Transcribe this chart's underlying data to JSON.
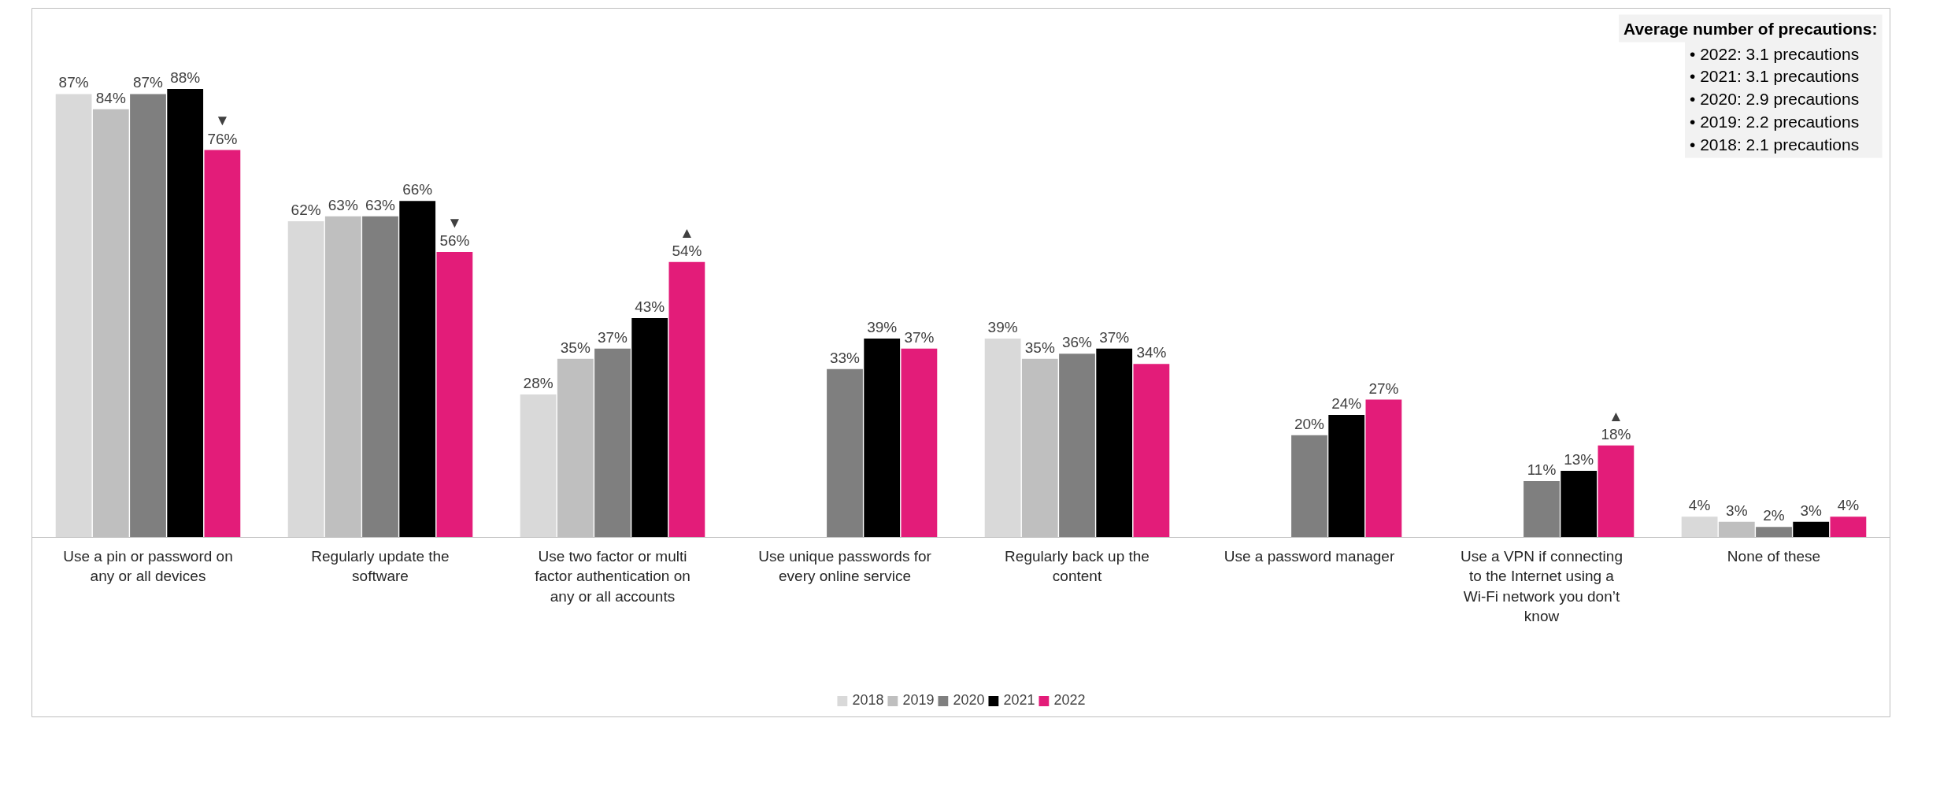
{
  "chart_data": {
    "type": "bar",
    "categories": [
      "Use a pin or password on any or all devices",
      "Regularly update the software",
      "Use two factor or multi factor authentication on any or all accounts",
      "Use unique passwords for every online service",
      "Regularly back up the content",
      "Use a password manager",
      "Use a VPN if connecting to the Internet using a Wi-Fi network you don’t know",
      "None of these"
    ],
    "series": [
      {
        "name": "2018",
        "color": "#d9d9d9",
        "values": [
          87,
          62,
          28,
          null,
          39,
          null,
          null,
          4
        ],
        "value_labels": [
          "87%",
          "62%",
          "28%",
          null,
          "39%",
          null,
          null,
          "4%"
        ]
      },
      {
        "name": "2019",
        "color": "#bfbfbf",
        "values": [
          84,
          63,
          35,
          null,
          35,
          null,
          null,
          3
        ],
        "value_labels": [
          "84%",
          "63%",
          "35%",
          null,
          "35%",
          null,
          null,
          "3%"
        ]
      },
      {
        "name": "2020",
        "color": "#7f7f7f",
        "values": [
          87,
          63,
          37,
          33,
          36,
          20,
          11,
          2
        ],
        "value_labels": [
          "87%",
          "63%",
          "37%",
          "33%",
          "36%",
          "20%",
          "11%",
          "2%"
        ]
      },
      {
        "name": "2021",
        "color": "#000000",
        "values": [
          88,
          66,
          43,
          39,
          37,
          24,
          13,
          3
        ],
        "value_labels": [
          "88%",
          "66%",
          "43%",
          "39%",
          "37%",
          "24%",
          "13%",
          "3%"
        ]
      },
      {
        "name": "2022",
        "color": "#e31c79",
        "values": [
          76,
          56,
          54,
          37,
          34,
          27,
          18,
          4
        ],
        "value_labels": [
          "▼\n76%",
          "▼\n56%",
          "▲\n54%",
          "37%",
          "34%",
          "27%",
          "▲\n18%",
          "4%"
        ]
      }
    ],
    "annotations": [
      "Average number of precautions:",
      "•     2022: 3.1 precautions",
      "•     2021: 3.1 precautions",
      "•     2020: 2.9 precautions",
      "•     2019: 2.2 precautions",
      "•     2018: 2.1 precautions"
    ],
    "legend": "bottom",
    "grid": false
  }
}
